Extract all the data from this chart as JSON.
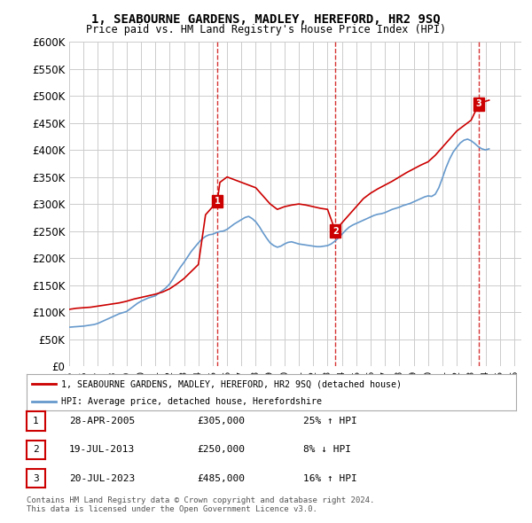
{
  "title": "1, SEABOURNE GARDENS, MADLEY, HEREFORD, HR2 9SQ",
  "subtitle": "Price paid vs. HM Land Registry's House Price Index (HPI)",
  "ylim": [
    0,
    600000
  ],
  "yticks": [
    0,
    50000,
    100000,
    150000,
    200000,
    250000,
    300000,
    350000,
    400000,
    450000,
    500000,
    550000,
    600000
  ],
  "ytick_labels": [
    "£0",
    "£50K",
    "£100K",
    "£150K",
    "£200K",
    "£250K",
    "£300K",
    "£350K",
    "£400K",
    "£450K",
    "£500K",
    "£550K",
    "£600K"
  ],
  "xlim_start": 1995.0,
  "xlim_end": 2026.5,
  "sale_dates": [
    2005.32,
    2013.54,
    2023.54
  ],
  "sale_prices": [
    305000,
    250000,
    485000
  ],
  "sale_labels": [
    "1",
    "2",
    "3"
  ],
  "sale_info": [
    {
      "num": "1",
      "date": "28-APR-2005",
      "price": "£305,000",
      "hpi": "25% ↑ HPI"
    },
    {
      "num": "2",
      "date": "19-JUL-2013",
      "price": "£250,000",
      "hpi": "8% ↓ HPI"
    },
    {
      "num": "3",
      "date": "20-JUL-2023",
      "price": "£485,000",
      "hpi": "16% ↑ HPI"
    }
  ],
  "legend_red": "1, SEABOURNE GARDENS, MADLEY, HEREFORD, HR2 9SQ (detached house)",
  "legend_blue": "HPI: Average price, detached house, Herefordshire",
  "footnote": "Contains HM Land Registry data © Crown copyright and database right 2024.\nThis data is licensed under the Open Government Licence v3.0.",
  "red_color": "#cc0000",
  "blue_color": "#6699cc",
  "dashed_color": "#cc0000",
  "background_color": "#ffffff",
  "grid_color": "#cccccc",
  "hpi_data": {
    "years": [
      1995.0,
      1995.25,
      1995.5,
      1995.75,
      1996.0,
      1996.25,
      1996.5,
      1996.75,
      1997.0,
      1997.25,
      1997.5,
      1997.75,
      1998.0,
      1998.25,
      1998.5,
      1998.75,
      1999.0,
      1999.25,
      1999.5,
      1999.75,
      2000.0,
      2000.25,
      2000.5,
      2000.75,
      2001.0,
      2001.25,
      2001.5,
      2001.75,
      2002.0,
      2002.25,
      2002.5,
      2002.75,
      2003.0,
      2003.25,
      2003.5,
      2003.75,
      2004.0,
      2004.25,
      2004.5,
      2004.75,
      2005.0,
      2005.25,
      2005.5,
      2005.75,
      2006.0,
      2006.25,
      2006.5,
      2006.75,
      2007.0,
      2007.25,
      2007.5,
      2007.75,
      2008.0,
      2008.25,
      2008.5,
      2008.75,
      2009.0,
      2009.25,
      2009.5,
      2009.75,
      2010.0,
      2010.25,
      2010.5,
      2010.75,
      2011.0,
      2011.25,
      2011.5,
      2011.75,
      2012.0,
      2012.25,
      2012.5,
      2012.75,
      2013.0,
      2013.25,
      2013.5,
      2013.75,
      2014.0,
      2014.25,
      2014.5,
      2014.75,
      2015.0,
      2015.25,
      2015.5,
      2015.75,
      2016.0,
      2016.25,
      2016.5,
      2016.75,
      2017.0,
      2017.25,
      2017.5,
      2017.75,
      2018.0,
      2018.25,
      2018.5,
      2018.75,
      2019.0,
      2019.25,
      2019.5,
      2019.75,
      2020.0,
      2020.25,
      2020.5,
      2020.75,
      2021.0,
      2021.25,
      2021.5,
      2021.75,
      2022.0,
      2022.25,
      2022.5,
      2022.75,
      2023.0,
      2023.25,
      2023.5,
      2023.75,
      2024.0,
      2024.25
    ],
    "values": [
      72000,
      72500,
      73000,
      73500,
      74000,
      75000,
      76000,
      77000,
      79000,
      82000,
      85000,
      88000,
      91000,
      94000,
      97000,
      99000,
      101000,
      106000,
      111000,
      116000,
      120000,
      123000,
      126000,
      128000,
      130000,
      135000,
      140000,
      145000,
      152000,
      162000,
      173000,
      183000,
      192000,
      202000,
      212000,
      220000,
      228000,
      235000,
      240000,
      243000,
      244000,
      247000,
      249000,
      250000,
      253000,
      258000,
      263000,
      267000,
      271000,
      275000,
      277000,
      273000,
      267000,
      258000,
      247000,
      237000,
      228000,
      223000,
      220000,
      222000,
      226000,
      229000,
      230000,
      228000,
      226000,
      225000,
      224000,
      223000,
      222000,
      221000,
      221000,
      222000,
      223000,
      226000,
      231000,
      237000,
      244000,
      251000,
      257000,
      261000,
      264000,
      267000,
      270000,
      273000,
      276000,
      279000,
      281000,
      282000,
      284000,
      287000,
      290000,
      292000,
      294000,
      297000,
      299000,
      301000,
      304000,
      307000,
      310000,
      313000,
      315000,
      314000,
      318000,
      330000,
      348000,
      367000,
      383000,
      396000,
      405000,
      413000,
      418000,
      420000,
      417000,
      412000,
      406000,
      402000,
      400000,
      402000
    ]
  },
  "price_data": {
    "years": [
      1995.0,
      1995.5,
      1996.0,
      1996.5,
      1997.0,
      1997.5,
      1998.0,
      1998.5,
      1999.0,
      1999.5,
      2000.0,
      2000.5,
      2001.0,
      2001.5,
      2002.0,
      2002.5,
      2003.0,
      2003.5,
      2004.0,
      2004.5,
      2005.0,
      2005.32,
      2005.5,
      2005.75,
      2006.0,
      2006.5,
      2007.0,
      2007.5,
      2008.0,
      2008.5,
      2009.0,
      2009.5,
      2010.0,
      2010.5,
      2011.0,
      2011.5,
      2012.0,
      2012.5,
      2013.0,
      2013.54,
      2014.0,
      2014.5,
      2015.0,
      2015.5,
      2016.0,
      2016.5,
      2017.0,
      2017.5,
      2018.0,
      2018.5,
      2019.0,
      2019.5,
      2020.0,
      2020.5,
      2021.0,
      2021.5,
      2022.0,
      2022.5,
      2023.0,
      2023.54,
      2024.0,
      2024.25
    ],
    "values": [
      105000,
      107000,
      108000,
      109000,
      111000,
      113000,
      115000,
      117000,
      120000,
      124000,
      127000,
      130000,
      133000,
      137000,
      143000,
      152000,
      162000,
      175000,
      188000,
      280000,
      295000,
      305000,
      340000,
      345000,
      350000,
      345000,
      340000,
      335000,
      330000,
      315000,
      300000,
      290000,
      295000,
      298000,
      300000,
      298000,
      295000,
      292000,
      290000,
      250000,
      265000,
      280000,
      295000,
      310000,
      320000,
      328000,
      335000,
      342000,
      350000,
      358000,
      365000,
      372000,
      378000,
      390000,
      405000,
      420000,
      435000,
      445000,
      455000,
      485000,
      490000,
      492000
    ]
  }
}
